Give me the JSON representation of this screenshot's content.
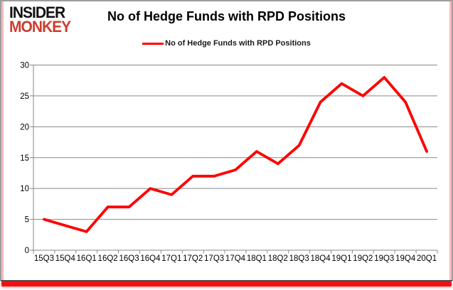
{
  "header": {
    "logo_line1": "INSIDER",
    "logo_line2": "MONKEY",
    "title": "No of Hedge Funds with RPD Positions"
  },
  "legend": {
    "label": "No of Hedge Funds with RPD Positions"
  },
  "chart_data": {
    "type": "line",
    "title": "No of Hedge Funds with RPD Positions",
    "categories": [
      "15Q3",
      "15Q4",
      "16Q1",
      "16Q2",
      "16Q3",
      "16Q4",
      "17Q1",
      "17Q2",
      "17Q3",
      "17Q4",
      "18Q1",
      "18Q2",
      "18Q3",
      "18Q4",
      "19Q1",
      "19Q2",
      "19Q3",
      "19Q4",
      "20Q1"
    ],
    "series": [
      {
        "name": "No of Hedge Funds with RPD Positions",
        "values": [
          5,
          4,
          3,
          7,
          7,
          10,
          9,
          12,
          12,
          13,
          16,
          14,
          17,
          24,
          27,
          25,
          28,
          24,
          16
        ],
        "color": "#fe0000"
      }
    ],
    "xlabel": "",
    "ylabel": "",
    "ylim": [
      0,
      30
    ],
    "yticks": [
      0,
      5,
      10,
      15,
      20,
      25,
      30
    ],
    "grid": true,
    "legend_position": "top-center"
  },
  "colors": {
    "line": "#fe0000",
    "grid": "#898989",
    "logo_red": "#cb3d2e",
    "frame_pink": "#f6bcb9",
    "frame_gray": "#9d9d9d",
    "bottom_bar": "#f11212"
  }
}
